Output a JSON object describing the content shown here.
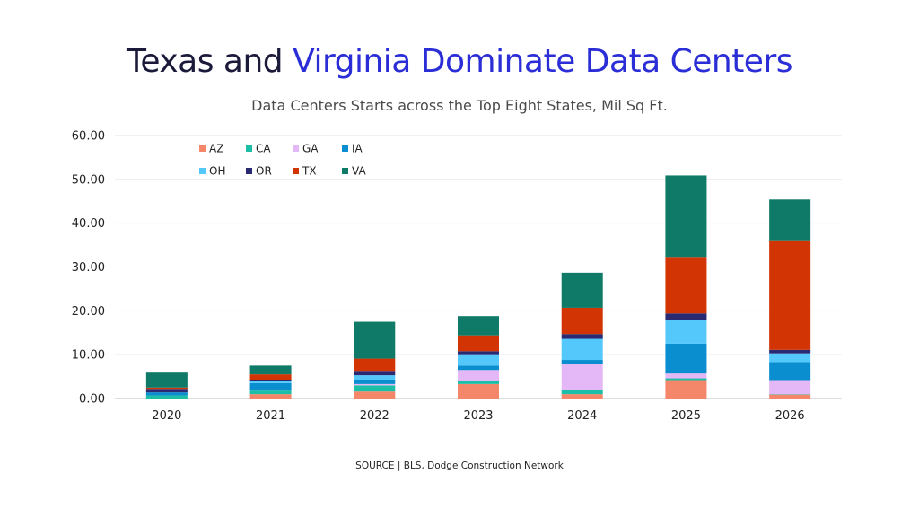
{
  "title": {
    "part1": "Texas and",
    "part2": "Virginia Dominate Data Centers"
  },
  "subtitle": "Data Centers Starts across the Top Eight States, Mil Sq Ft.",
  "source": "SOURCE  |  BLS, Dodge Construction Network",
  "colors": {
    "title_dark": "#1b1a3a",
    "title_blue": "#2b2ed6"
  },
  "chart_data": {
    "type": "bar",
    "stacked": true,
    "categories": [
      "2020",
      "2021",
      "2022",
      "2023",
      "2024",
      "2025",
      "2026"
    ],
    "ylim": [
      0,
      60
    ],
    "yticks": [
      "0.00",
      "10.00",
      "20.00",
      "30.00",
      "40.00",
      "50.00",
      "60.00"
    ],
    "grid": true,
    "legend_position": "top-left",
    "series": [
      {
        "name": "AZ",
        "color": "#f4876a",
        "values": [
          0.0,
          1.0,
          1.6,
          3.3,
          1.0,
          4.2,
          0.9
        ]
      },
      {
        "name": "CA",
        "color": "#1bbfa5",
        "values": [
          0.7,
          0.8,
          1.4,
          0.7,
          0.9,
          0.4,
          0.1
        ]
      },
      {
        "name": "GA",
        "color": "#e4b8f6",
        "values": [
          0.0,
          0.0,
          0.3,
          2.5,
          6.0,
          1.1,
          3.2
        ]
      },
      {
        "name": "IA",
        "color": "#0a8ecf",
        "values": [
          0.7,
          1.7,
          1.0,
          1.0,
          0.9,
          6.8,
          4.1
        ]
      },
      {
        "name": "OH",
        "color": "#55c8fb",
        "values": [
          0.0,
          0.5,
          1.0,
          2.6,
          4.8,
          5.4,
          2.0
        ]
      },
      {
        "name": "OR",
        "color": "#2a2a73",
        "values": [
          0.8,
          0.3,
          1.0,
          0.7,
          1.1,
          1.5,
          0.8
        ]
      },
      {
        "name": "TX",
        "color": "#d33404",
        "values": [
          0.3,
          1.2,
          2.8,
          3.6,
          6.0,
          12.9,
          25.0
        ]
      },
      {
        "name": "VA",
        "color": "#0e7a67",
        "values": [
          3.4,
          2.0,
          8.4,
          4.4,
          8.0,
          18.6,
          9.3
        ]
      }
    ]
  }
}
